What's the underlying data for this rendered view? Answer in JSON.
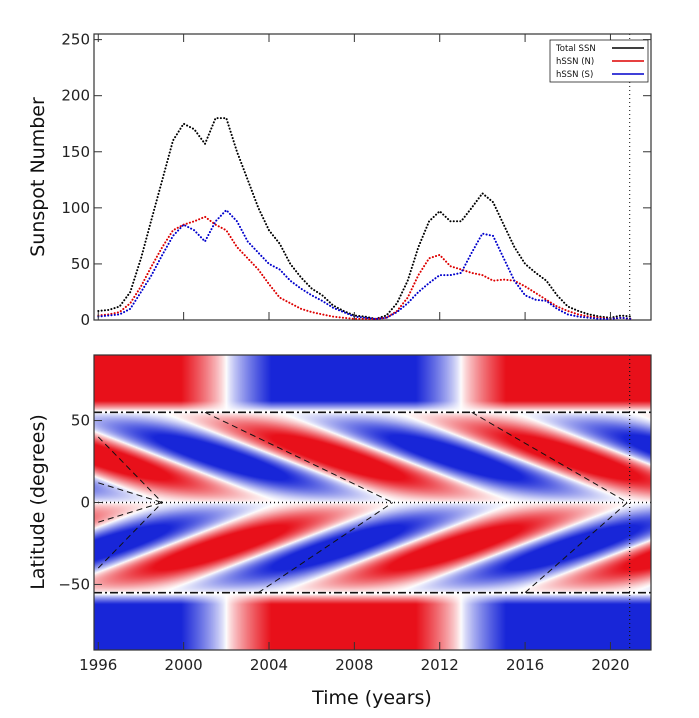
{
  "chart_data": [
    {
      "type": "line",
      "style": "dotted",
      "ylabel": "Sunspot Number",
      "xlim": [
        1995.8,
        2021.9
      ],
      "ylim": [
        0,
        255
      ],
      "xticks": [
        1996,
        2000,
        2004,
        2008,
        2012,
        2016,
        2020
      ],
      "yticks": [
        0,
        50,
        100,
        150,
        200,
        250
      ],
      "legend_position": "top-right",
      "vertical_marker": 2020.9,
      "series": [
        {
          "name": "Total SSN",
          "color": "#000000",
          "x": [
            1996,
            1996.5,
            1997,
            1997.5,
            1998,
            1998.5,
            1999,
            1999.5,
            2000,
            2000.5,
            2001,
            2001.5,
            2002,
            2002.5,
            2003,
            2003.5,
            2004,
            2004.5,
            2005,
            2005.5,
            2006,
            2006.5,
            2007,
            2007.5,
            2008,
            2008.5,
            2009,
            2009.5,
            2010,
            2010.5,
            2011,
            2011.5,
            2012,
            2012.5,
            2013,
            2013.5,
            2014,
            2014.5,
            2015,
            2015.5,
            2016,
            2016.5,
            2017,
            2017.5,
            2018,
            2018.5,
            2019,
            2019.5,
            2020,
            2020.5,
            2021
          ],
          "y": [
            8,
            9,
            12,
            25,
            55,
            90,
            125,
            160,
            175,
            170,
            157,
            180,
            180,
            150,
            125,
            100,
            80,
            68,
            50,
            38,
            28,
            22,
            13,
            8,
            4,
            3,
            1,
            4,
            15,
            35,
            65,
            88,
            97,
            88,
            88,
            100,
            113,
            105,
            85,
            65,
            50,
            42,
            35,
            22,
            12,
            8,
            5,
            3,
            2,
            4,
            3
          ]
        },
        {
          "name": "hSSN (N)",
          "color": "#dd0000",
          "x": [
            1996,
            1996.5,
            1997,
            1997.5,
            1998,
            1998.5,
            1999,
            1999.5,
            2000,
            2000.5,
            2001,
            2001.5,
            2002,
            2002.5,
            2003,
            2003.5,
            2004,
            2004.5,
            2005,
            2005.5,
            2006,
            2006.5,
            2007,
            2007.5,
            2008,
            2008.5,
            2009,
            2009.5,
            2010,
            2010.5,
            2011,
            2011.5,
            2012,
            2012.5,
            2013,
            2013.5,
            2014,
            2014.5,
            2015,
            2015.5,
            2016,
            2016.5,
            2017,
            2017.5,
            2018,
            2018.5,
            2019,
            2019.5,
            2020,
            2020.5,
            2021
          ],
          "y": [
            4,
            5,
            7,
            15,
            30,
            48,
            65,
            80,
            85,
            88,
            92,
            85,
            80,
            65,
            55,
            45,
            32,
            20,
            15,
            10,
            7,
            5,
            3,
            2,
            1,
            1,
            1,
            2,
            8,
            20,
            40,
            55,
            58,
            48,
            45,
            42,
            40,
            35,
            36,
            35,
            30,
            24,
            18,
            12,
            8,
            5,
            3,
            2,
            1,
            2,
            1
          ]
        },
        {
          "name": "hSSN (S)",
          "color": "#0000cc",
          "x": [
            1996,
            1996.5,
            1997,
            1997.5,
            1998,
            1998.5,
            1999,
            1999.5,
            2000,
            2000.5,
            2001,
            2001.5,
            2002,
            2002.5,
            2003,
            2003.5,
            2004,
            2004.5,
            2005,
            2005.5,
            2006,
            2006.5,
            2007,
            2007.5,
            2008,
            2008.5,
            2009,
            2009.5,
            2010,
            2010.5,
            2011,
            2011.5,
            2012,
            2012.5,
            2013,
            2013.5,
            2014,
            2014.5,
            2015,
            2015.5,
            2016,
            2016.5,
            2017,
            2017.5,
            2018,
            2018.5,
            2019,
            2019.5,
            2020,
            2020.5,
            2021
          ],
          "y": [
            3,
            4,
            5,
            10,
            25,
            40,
            58,
            75,
            85,
            80,
            70,
            88,
            98,
            88,
            70,
            60,
            50,
            45,
            35,
            28,
            22,
            17,
            11,
            7,
            3,
            2,
            1,
            2,
            7,
            15,
            25,
            33,
            40,
            40,
            42,
            60,
            77,
            75,
            55,
            35,
            22,
            18,
            17,
            10,
            5,
            3,
            2,
            1,
            1,
            2,
            1
          ]
        }
      ]
    },
    {
      "type": "heatmap",
      "xlabel": "Time (years)",
      "ylabel": "Latitude (degrees)",
      "xlim": [
        1995.8,
        2021.9
      ],
      "ylim": [
        -90,
        90
      ],
      "xticks": [
        1996,
        2000,
        2004,
        2008,
        2012,
        2016,
        2020
      ],
      "yticks": [
        -50,
        0,
        50
      ],
      "colors": {
        "positive": "#e8101a",
        "negative": "#1826d8",
        "zero": "#ffffff"
      },
      "horizontal_lines": [
        55,
        -55
      ],
      "equator_line": 0,
      "vertical_marker": 2020.9,
      "butterfly_guides": [
        {
          "x": [
            1996,
            1999
          ],
          "y": [
            40,
            0
          ]
        },
        {
          "x": [
            1996,
            1999
          ],
          "y": [
            -40,
            0
          ]
        },
        {
          "x": [
            1996,
            1999
          ],
          "y": [
            12,
            0
          ]
        },
        {
          "x": [
            1996,
            1999
          ],
          "y": [
            -12,
            0
          ]
        },
        {
          "x": [
            2001,
            2009.8
          ],
          "y": [
            55,
            0
          ]
        },
        {
          "x": [
            2003.5,
            2009.8
          ],
          "y": [
            -55,
            0
          ]
        },
        {
          "x": [
            2013.5,
            2020.8
          ],
          "y": [
            55,
            0
          ]
        },
        {
          "x": [
            2016,
            2020.8
          ],
          "y": [
            -55,
            0
          ]
        }
      ]
    }
  ]
}
